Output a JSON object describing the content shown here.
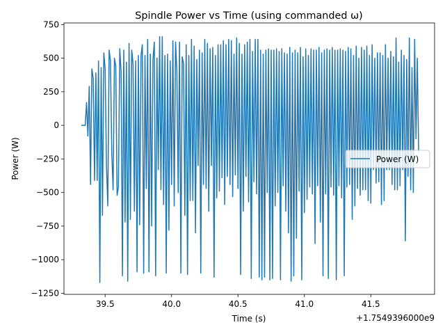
{
  "chart_data": {
    "type": "line",
    "title": "Spindle Power vs Time (using commanded ω)",
    "xlabel": "Time (s)",
    "ylabel": "Power (W)",
    "x_offset_label": "+1.7549396000e9",
    "xlim": [
      39.19,
      41.98
    ],
    "ylim": [
      -1258,
      762
    ],
    "x_ticks": [
      39.5,
      40.0,
      40.5,
      41.0,
      41.5
    ],
    "x_tick_labels": [
      "39.5",
      "40.0",
      "40.5",
      "41.0",
      "41.5"
    ],
    "y_ticks": [
      -1250,
      -1000,
      -750,
      -500,
      -250,
      0,
      250,
      500,
      750
    ],
    "y_tick_labels": [
      "−1250",
      "−1000",
      "−750",
      "−500",
      "−250",
      "0",
      "250",
      "500",
      "750"
    ],
    "grid": false,
    "legend_position": "center-right",
    "series": [
      {
        "name": "Power (W)",
        "color": "#1f77b4",
        "x": [
          39.32,
          39.34,
          39.35,
          39.36,
          39.37,
          39.38,
          39.39,
          39.4,
          39.41,
          39.42,
          39.43,
          39.44,
          39.45,
          39.46,
          39.47,
          39.48,
          39.49,
          39.5,
          39.51,
          39.52,
          39.53,
          39.54,
          39.55,
          39.56,
          39.57,
          39.58,
          39.59,
          39.6,
          39.61,
          39.62,
          39.63,
          39.64,
          39.65,
          39.66,
          39.67,
          39.68,
          39.69,
          39.7,
          39.71,
          39.72,
          39.73,
          39.74,
          39.75,
          39.76,
          39.77,
          39.78,
          39.79,
          39.8,
          39.81,
          39.82,
          39.83,
          39.84,
          39.85,
          39.86,
          39.87,
          39.88,
          39.89,
          39.9,
          39.91,
          39.92,
          39.93,
          39.94,
          39.95,
          39.96,
          39.97,
          39.98,
          39.99,
          40.0,
          40.01,
          40.02,
          40.03,
          40.04,
          40.05,
          40.06,
          40.07,
          40.08,
          40.09,
          40.1,
          40.11,
          40.12,
          40.13,
          40.14,
          40.15,
          40.16,
          40.17,
          40.18,
          40.19,
          40.2,
          40.21,
          40.22,
          40.23,
          40.24,
          40.25,
          40.26,
          40.27,
          40.28,
          40.29,
          40.3,
          40.31,
          40.32,
          40.33,
          40.34,
          40.35,
          40.36,
          40.37,
          40.38,
          40.39,
          40.4,
          40.41,
          40.42,
          40.43,
          40.44,
          40.45,
          40.46,
          40.47,
          40.48,
          40.49,
          40.5,
          40.51,
          40.52,
          40.53,
          40.54,
          40.55,
          40.56,
          40.57,
          40.58,
          40.59,
          40.6,
          40.61,
          40.62,
          40.63,
          40.64,
          40.65,
          40.66,
          40.67,
          40.68,
          40.69,
          40.7,
          40.71,
          40.72,
          40.73,
          40.74,
          40.75,
          40.76,
          40.77,
          40.78,
          40.79,
          40.8,
          40.81,
          40.82,
          40.83,
          40.84,
          40.85,
          40.86,
          40.87,
          40.88,
          40.89,
          40.9,
          40.91,
          40.92,
          40.93,
          40.94,
          40.95,
          40.96,
          40.97,
          40.98,
          40.99,
          41.0,
          41.01,
          41.02,
          41.03,
          41.04,
          41.05,
          41.06,
          41.07,
          41.08,
          41.09,
          41.1,
          41.11,
          41.12,
          41.13,
          41.14,
          41.15,
          41.16,
          41.17,
          41.18,
          41.19,
          41.2,
          41.21,
          41.22,
          41.23,
          41.24,
          41.25,
          41.26,
          41.27,
          41.28,
          41.29,
          41.3,
          41.31,
          41.32,
          41.33,
          41.34,
          41.35,
          41.36,
          41.37,
          41.38,
          41.39,
          41.4,
          41.41,
          41.42,
          41.43,
          41.44,
          41.45,
          41.46,
          41.47,
          41.48,
          41.49,
          41.5,
          41.51,
          41.52,
          41.53,
          41.54,
          41.55,
          41.56,
          41.57,
          41.58,
          41.59,
          41.6,
          41.61,
          41.62,
          41.63,
          41.64,
          41.65,
          41.66,
          41.67,
          41.68,
          41.69,
          41.7,
          41.71,
          41.72,
          41.73,
          41.74,
          41.75,
          41.76,
          41.77,
          41.78,
          41.79,
          41.8,
          41.81,
          41.82,
          41.83,
          41.84,
          41.85,
          41.86
        ],
        "y": [
          0,
          0,
          0,
          170,
          -80,
          290,
          -440,
          420,
          350,
          -410,
          390,
          -410,
          480,
          -1170,
          430,
          -670,
          540,
          420,
          -300,
          -600,
          560,
          480,
          -210,
          -480,
          500,
          440,
          -520,
          -460,
          570,
          400,
          -1120,
          560,
          -720,
          470,
          -1160,
          610,
          -700,
          560,
          460,
          -640,
          480,
          -1090,
          520,
          -740,
          520,
          600,
          -1100,
          520,
          -470,
          640,
          -1090,
          530,
          -750,
          490,
          620,
          -1120,
          500,
          -330,
          660,
          -480,
          660,
          -590,
          520,
          -1100,
          530,
          -780,
          480,
          -440,
          630,
          -600,
          620,
          400,
          -500,
          620,
          -1100,
          510,
          460,
          -670,
          600,
          -1110,
          520,
          -560,
          640,
          -560,
          590,
          -800,
          490,
          -300,
          560,
          -1100,
          540,
          -440,
          640,
          -470,
          610,
          -640,
          570,
          -300,
          580,
          -1130,
          520,
          -540,
          600,
          -490,
          600,
          -390,
          630,
          -590,
          600,
          -380,
          640,
          -440,
          630,
          -530,
          530,
          -370,
          650,
          -470,
          610,
          -1110,
          530,
          -640,
          600,
          -380,
          620,
          -570,
          640,
          -1140,
          550,
          -420,
          640,
          -510,
          640,
          -1130,
          560,
          -1150,
          530,
          -1130,
          560,
          -500,
          570,
          -1150,
          560,
          -1140,
          560,
          -600,
          570,
          -500,
          550,
          -1150,
          570,
          -450,
          540,
          -640,
          530,
          -800,
          580,
          -1160,
          540,
          -1120,
          560,
          -840,
          540,
          -490,
          580,
          -1150,
          510,
          -650,
          570,
          -550,
          520,
          -460,
          570,
          -510,
          560,
          -880,
          560,
          -450,
          580,
          -720,
          540,
          -1120,
          560,
          -510,
          570,
          -1140,
          560,
          -460,
          580,
          -520,
          560,
          -1150,
          560,
          -450,
          570,
          -540,
          560,
          -1120,
          550,
          -460,
          580,
          -440,
          570,
          -700,
          520,
          -600,
          590,
          -470,
          500,
          -520,
          580,
          -480,
          560,
          -480,
          590,
          -560,
          520,
          -580,
          600,
          -330,
          500,
          -430,
          540,
          -420,
          540,
          -590,
          520,
          -560,
          600,
          -330,
          500,
          -330,
          550,
          -440,
          510,
          -480,
          650,
          -480,
          470,
          -450,
          560,
          -330,
          520,
          -860,
          490,
          -380,
          650,
          -480,
          430,
          -500,
          640,
          -100,
          500,
          -200
        ]
      }
    ]
  }
}
